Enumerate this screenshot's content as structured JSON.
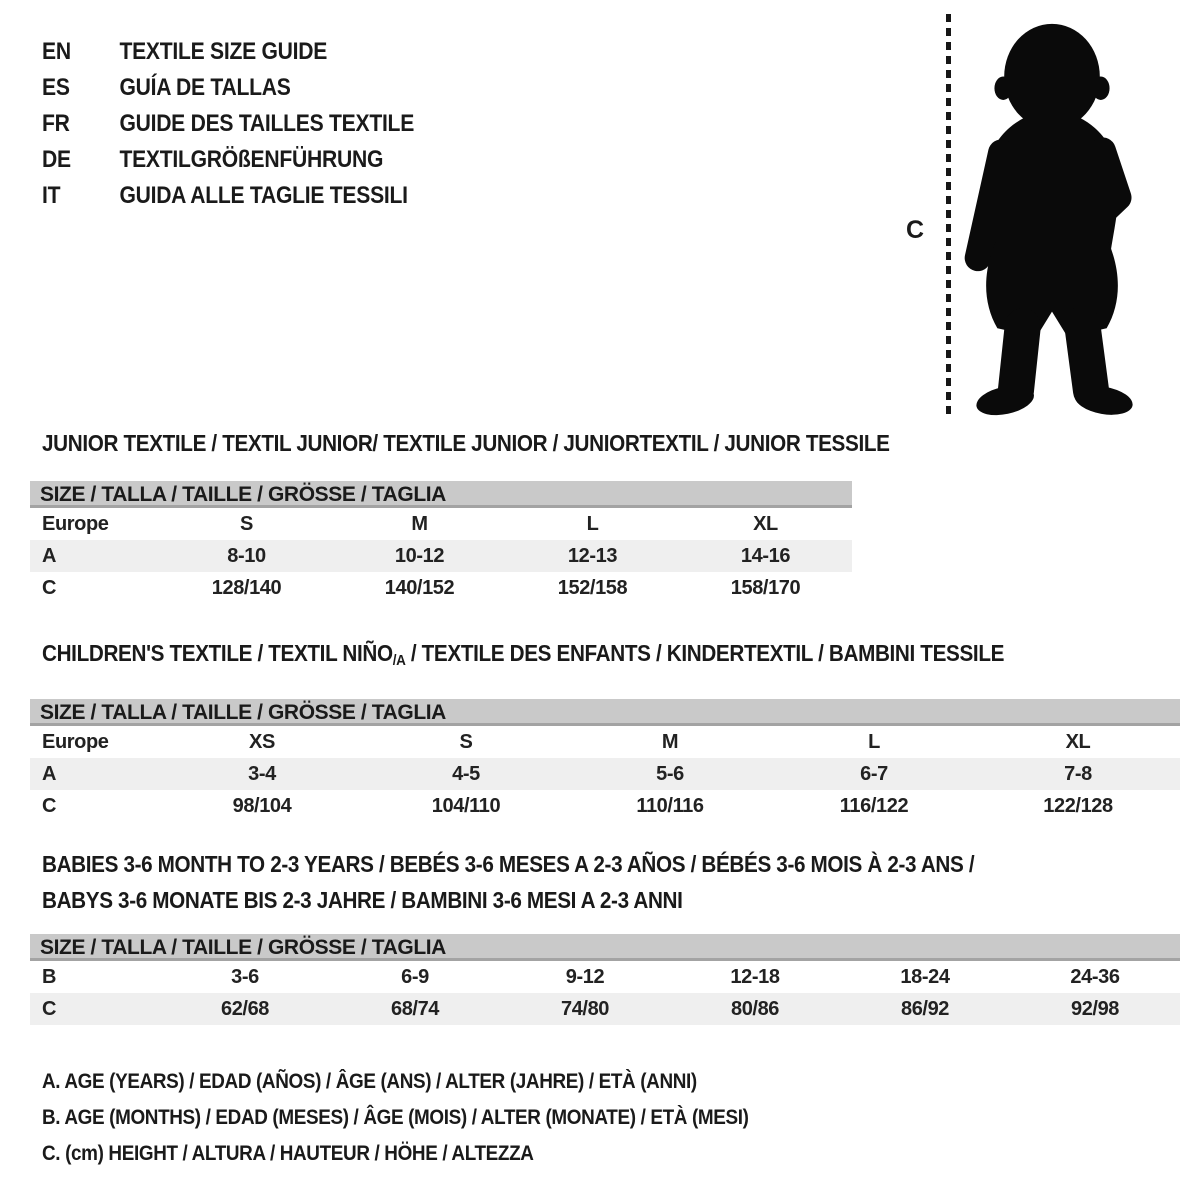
{
  "languages": [
    {
      "code": "EN",
      "title": "TEXTILE SIZE GUIDE"
    },
    {
      "code": "ES",
      "title": "GUÍA DE TALLAS"
    },
    {
      "code": "FR",
      "title": "GUIDE DES TAILLES TEXTILE"
    },
    {
      "code": "DE",
      "title": "TEXTILGRÖßENFÜHRUNG"
    },
    {
      "code": "IT",
      "title": "GUIDA ALLE TAGLIE TESSILI"
    }
  ],
  "figure": {
    "measure_label": "C",
    "illustration": "toddler-silhouette"
  },
  "tables": {
    "junior": {
      "title": "JUNIOR TEXTILE / TEXTIL JUNIOR/ TEXTILE JUNIOR / JUNIORTEXTIL / JUNIOR TESSILE",
      "size_header": "SIZE / TALLA / TAILLE / GRÖSSE / TAGLIA",
      "rows": [
        {
          "label": "Europe",
          "shaded": false,
          "values": [
            "S",
            "M",
            "L",
            "XL"
          ]
        },
        {
          "label": "A",
          "shaded": true,
          "values": [
            "8-10",
            "10-12",
            "12-13",
            "14-16"
          ]
        },
        {
          "label": "C",
          "shaded": false,
          "values": [
            "128/140",
            "140/152",
            "152/158",
            "158/170"
          ]
        }
      ]
    },
    "children": {
      "title_pre": "CHILDREN'S TEXTILE / TEXTIL NIÑO",
      "title_sub": "/A",
      "title_post": " / TEXTILE DES ENFANTS / KINDERTEXTIL / BAMBINI TESSILE",
      "size_header": "SIZE / TALLA / TAILLE / GRÖSSE / TAGLIA",
      "rows": [
        {
          "label": "Europe",
          "shaded": false,
          "values": [
            "XS",
            "S",
            "M",
            "L",
            "XL"
          ]
        },
        {
          "label": "A",
          "shaded": true,
          "values": [
            "3-4",
            "4-5",
            "5-6",
            "6-7",
            "7-8"
          ]
        },
        {
          "label": "C",
          "shaded": false,
          "values": [
            "98/104",
            "104/110",
            "110/116",
            "116/122",
            "122/128"
          ]
        }
      ]
    },
    "babies": {
      "title_line1": "BABIES 3-6 MONTH TO 2-3 YEARS / BEBÉS 3-6 MESES A 2-3 AÑOS / BÉBÉS 3-6 MOIS À 2-3 ANS /",
      "title_line2": "BABYS 3-6 MONATE BIS 2-3 JAHRE / BAMBINI 3-6 MESI A 2-3 ANNI",
      "size_header": "SIZE / TALLA / TAILLE / GRÖSSE / TAGLIA",
      "rows": [
        {
          "label": "B",
          "shaded": false,
          "values": [
            "3-6",
            "6-9",
            "9-12",
            "12-18",
            "18-24",
            "24-36"
          ]
        },
        {
          "label": "C",
          "shaded": true,
          "values": [
            "62/68",
            "68/74",
            "74/80",
            "80/86",
            "86/92",
            "92/98"
          ]
        }
      ]
    }
  },
  "legend": [
    "A. AGE (YEARS) / EDAD (AÑOS) / ÂGE (ANS) / ALTER (JAHRE) / ETÀ (ANNI)",
    "B. AGE (MONTHS) / EDAD (MESES) / ÂGE (MOIS) / ALTER (MONATE) / ETÀ (MESI)",
    "C. (cm) HEIGHT / ALTURA / HAUTEUR / HÖHE / ALTEZZA"
  ],
  "colors": {
    "header_bar": "#c9c9c9",
    "shaded_row": "#efefef",
    "silhouette": "#0a0a0a",
    "text": "#1a1a1a"
  }
}
